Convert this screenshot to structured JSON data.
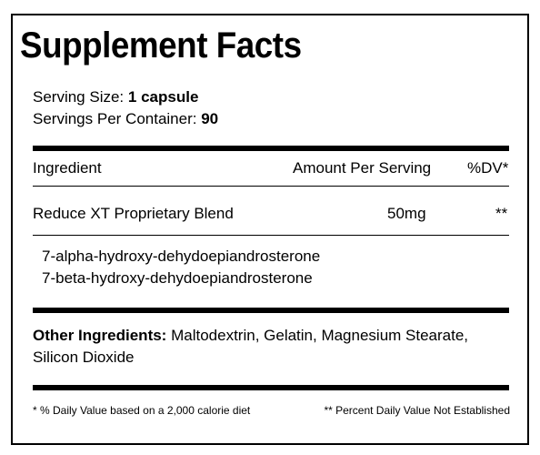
{
  "title": "Supplement Facts",
  "serving": {
    "size_label": "Serving Size:",
    "size_value": "1 capsule",
    "per_container_label": "Servings Per Container:",
    "per_container_value": "90"
  },
  "table": {
    "headers": {
      "ingredient": "Ingredient",
      "amount": "Amount Per Serving",
      "dv": "%DV*"
    },
    "blend": {
      "name": "Reduce XT Proprietary Blend",
      "amount": "50mg",
      "dv": "**"
    },
    "blend_components": [
      "7-alpha-hydroxy-dehydoepiandrosterone",
      "7-beta-hydroxy-dehydoepiandrosterone"
    ]
  },
  "other_ingredients": {
    "label": "Other Ingredients:",
    "line1": "Maltodextrin, Gelatin, Magnesium Stearate,",
    "line2": "Silicon Dioxide"
  },
  "footnotes": {
    "left": "* % Daily Value based on a 2,000 calorie diet",
    "right": "** Percent Daily Value Not Established"
  }
}
